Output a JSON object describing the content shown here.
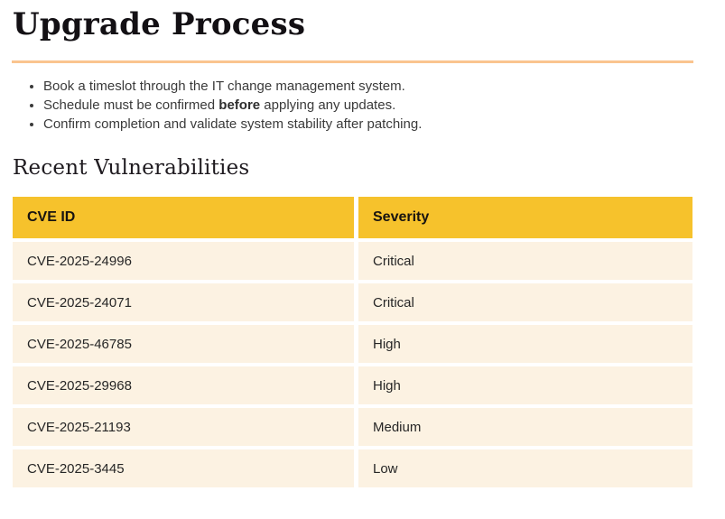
{
  "page": {
    "title": "Upgrade Process",
    "section_heading": "Recent Vulnerabilities"
  },
  "bullets": [
    {
      "pre": "Book a timeslot through the IT change management system.",
      "bold": "",
      "post": ""
    },
    {
      "pre": "Schedule must be confirmed ",
      "bold": "before",
      "post": " applying any updates."
    },
    {
      "pre": "Confirm completion and validate system stability after patching.",
      "bold": "",
      "post": ""
    }
  ],
  "table": {
    "columns": [
      "CVE ID",
      "Severity"
    ],
    "rows": [
      {
        "cve_id": "CVE-2025-24996",
        "severity": "Critical"
      },
      {
        "cve_id": "CVE-2025-24071",
        "severity": "Critical"
      },
      {
        "cve_id": "CVE-2025-46785",
        "severity": "High"
      },
      {
        "cve_id": "CVE-2025-29968",
        "severity": "High"
      },
      {
        "cve_id": "CVE-2025-21193",
        "severity": "Medium"
      },
      {
        "cve_id": "CVE-2025-3445",
        "severity": "Low"
      }
    ]
  },
  "colors": {
    "table_header_bg": "#F6C22C",
    "table_row_bg": "#FCF2E2",
    "divider": "#FAC48F",
    "title_text": "#131014",
    "body_text": "#3a3a3a"
  }
}
